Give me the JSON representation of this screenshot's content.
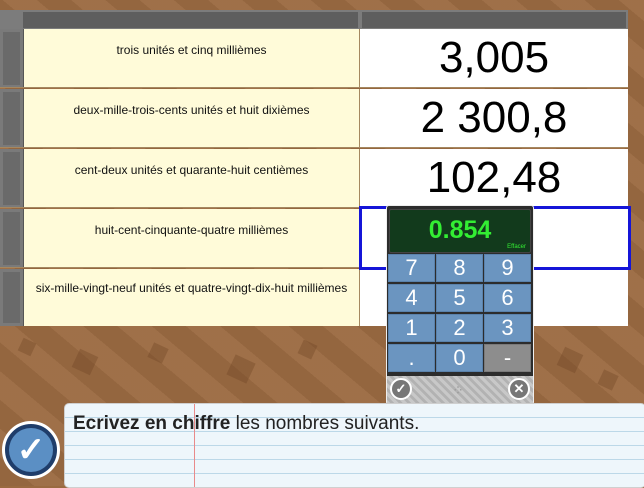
{
  "rows": [
    {
      "words": "trois unités et cinq millièmes",
      "number": "3,005"
    },
    {
      "words": "deux-mille-trois-cents unités et huit dixièmes",
      "number": "2 300,8"
    },
    {
      "words": "cent-deux unités et quarante-huit centièmes",
      "number": "102,48"
    },
    {
      "words": "huit-cent-cinquante-quatre millièmes",
      "number": ""
    },
    {
      "words": "six-mille-vingt-neuf unités et quatre-vingt-dix-huit millièmes",
      "number": ""
    }
  ],
  "keypad": {
    "display": "0.854",
    "erase_label": "Effacer",
    "keys": [
      "7",
      "8",
      "9",
      "4",
      "5",
      "6",
      "1",
      "2",
      "3",
      ".",
      "0",
      "-"
    ],
    "ok_icon": "check-icon",
    "cancel_icon": "close-icon"
  },
  "instruction": {
    "bold": "Ecrivez en chiffre",
    "rest": " les nombres suivants."
  },
  "submit_icon": "check-icon",
  "colors": {
    "selection": "#1515d8",
    "display_text": "#33ee33",
    "key": "#6b95c0"
  }
}
